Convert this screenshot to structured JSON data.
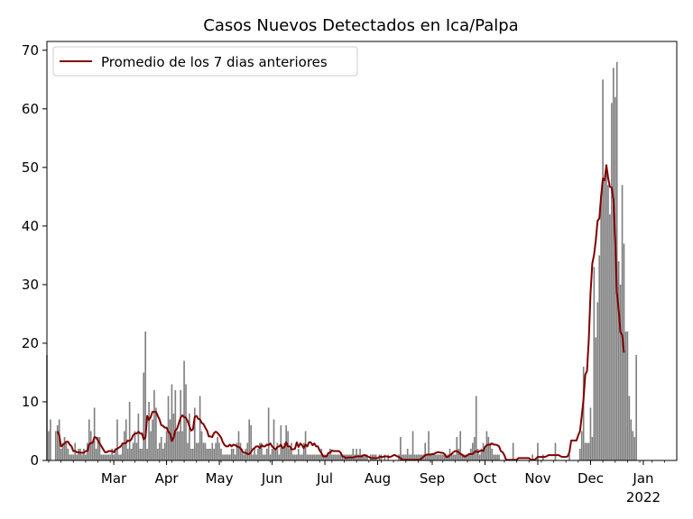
{
  "chart_data": {
    "type": "bar",
    "title": "Casos Nuevos Detectados en Ica/Palpa",
    "xlabel": "",
    "ylabel": "",
    "ylim": [
      0,
      71.5
    ],
    "yticks": [
      0,
      10,
      20,
      30,
      40,
      50,
      60,
      70
    ],
    "xlim": [
      0,
      358
    ],
    "xticks": [
      {
        "day": 38,
        "label": "Mar"
      },
      {
        "day": 68,
        "label": "Apr"
      },
      {
        "day": 98,
        "label": "May"
      },
      {
        "day": 128,
        "label": "Jun"
      },
      {
        "day": 158,
        "label": "Jul"
      },
      {
        "day": 188,
        "label": "Aug"
      },
      {
        "day": 219,
        "label": "Sep"
      },
      {
        "day": 249,
        "label": "Oct"
      },
      {
        "day": 279,
        "label": "Nov"
      },
      {
        "day": 309,
        "label": "Dec"
      },
      {
        "day": 339,
        "label": "Jan",
        "sublabel": "2022"
      }
    ],
    "minor_ticks": true,
    "grid": false,
    "legend_position": "top-left",
    "colors": {
      "bars": "#808080",
      "line": "#800000"
    },
    "series": [
      {
        "kind": "bar",
        "values": [
          18,
          5,
          7,
          0,
          0,
          5,
          6,
          7,
          2,
          3,
          4,
          3,
          2,
          1,
          1,
          1,
          3,
          1,
          2,
          2,
          1,
          2,
          1,
          3,
          7,
          5,
          3,
          9,
          2,
          4,
          4,
          1,
          1,
          1,
          1,
          1,
          1,
          2,
          1,
          2,
          7,
          1,
          1,
          3,
          5,
          7,
          2,
          10,
          2,
          3,
          5,
          3,
          8,
          2,
          2,
          15,
          22,
          2,
          10,
          5,
          7,
          12,
          9,
          2,
          3,
          4,
          2,
          3,
          5,
          11,
          7,
          13,
          8,
          12,
          5,
          5,
          12,
          5,
          17,
          13,
          3,
          8,
          2,
          2,
          9,
          3,
          3,
          11,
          5,
          3,
          3,
          2,
          2,
          2,
          3,
          2,
          3,
          4,
          3,
          2,
          1,
          1,
          1,
          1,
          1,
          2,
          2,
          1,
          3,
          5,
          3,
          2,
          1,
          2,
          3,
          7,
          6,
          1,
          2,
          1,
          2,
          3,
          3,
          1,
          1,
          2,
          9,
          1,
          2,
          7,
          2,
          3,
          1,
          6,
          2,
          3,
          6,
          5,
          2,
          3,
          1,
          1,
          1,
          2,
          1,
          1,
          3,
          5,
          1,
          1,
          1,
          1,
          1,
          1,
          1,
          1,
          2,
          1,
          1,
          1,
          1,
          2,
          1,
          1,
          1,
          1,
          1,
          1,
          1,
          1,
          1,
          1,
          1,
          1,
          2,
          1,
          2,
          1,
          2,
          1,
          1,
          1,
          1,
          0,
          1,
          1,
          1,
          1,
          0,
          1,
          1,
          0,
          1,
          0,
          1,
          0,
          0,
          0,
          0,
          0,
          1,
          4,
          1,
          1,
          1,
          2,
          1,
          1,
          5,
          1,
          1,
          1,
          1,
          1,
          1,
          3,
          1,
          5,
          1,
          1,
          1,
          1,
          1,
          1,
          1,
          1,
          1,
          1,
          1,
          2,
          1,
          1,
          1,
          4,
          2,
          5,
          1,
          1,
          1,
          1,
          1,
          2,
          3,
          4,
          11,
          2,
          1,
          2,
          3,
          2,
          5,
          4,
          3,
          2,
          1,
          1,
          1,
          1,
          0,
          0,
          0,
          0,
          0,
          0,
          0,
          3,
          0,
          0,
          0,
          0,
          0,
          0,
          0,
          0,
          0,
          0,
          1,
          0,
          0,
          3,
          0,
          0,
          1,
          0,
          0,
          0,
          0,
          0,
          0,
          3,
          0,
          0,
          0,
          0,
          0,
          0,
          0,
          1,
          0,
          0,
          0,
          0,
          0,
          2,
          5,
          16,
          3,
          3,
          3,
          9,
          4,
          33,
          21,
          27,
          35,
          45,
          65,
          48,
          50,
          47,
          42,
          61,
          67,
          62,
          68,
          34,
          30,
          47,
          37,
          22,
          22,
          11,
          7,
          5,
          4,
          18
        ]
      },
      {
        "kind": "line",
        "name": "Promedio de los 7 dias anteriores",
        "start_day": 6,
        "values": [
          5,
          4.3,
          2.4,
          2.6,
          2.9,
          3.2,
          3.2,
          2.7,
          2.4,
          1.6,
          1.6,
          1.4,
          1.4,
          1.3,
          1.3,
          1.3,
          1.6,
          1.6,
          2.7,
          3.0,
          3.0,
          4.0,
          3.9,
          3.4,
          2.9,
          2.4,
          1.9,
          1.4,
          1.4,
          1.6,
          1.6,
          1.6,
          1.4,
          1.9,
          2.0,
          2.2,
          2.4,
          2.9,
          2.9,
          3.0,
          3.4,
          3.3,
          3.6,
          4.3,
          4.6,
          4.6,
          4.9,
          4.6,
          4.6,
          3.6,
          3.9,
          7.6,
          6.9,
          7.4,
          8.3,
          8.3,
          8.3,
          7.6,
          7.0,
          6.0,
          5.9,
          5.6,
          5.6,
          4.9,
          4.6,
          3.3,
          3.9,
          5.1,
          5.4,
          6.4,
          7.3,
          7.7,
          7.4,
          7.3,
          6.7,
          5.8,
          5.1,
          5.3,
          7.4,
          7.6,
          7.1,
          7.0,
          6.4,
          6.2,
          5.6,
          5.1,
          4.1,
          4.1,
          4.0,
          4.7,
          4.9,
          4.7,
          4.3,
          3.9,
          3.1,
          2.6,
          2.4,
          2.4,
          2.7,
          2.4,
          2.7,
          2.6,
          2.4,
          2.3,
          2.1,
          1.6,
          1.3,
          1.3,
          1.1,
          1.1,
          1.4,
          1.9,
          2.1,
          2.4,
          2.4,
          2.1,
          2.6,
          2.4,
          2.4,
          2.7,
          2.6,
          2.9,
          2.4,
          2.1,
          1.9,
          2.3,
          2.4,
          2.7,
          2.1,
          2.3,
          3.1,
          2.4,
          2.4,
          1.9,
          1.9,
          2.0,
          3.1,
          2.3,
          2.9,
          2.6,
          2.1,
          2.7,
          2.4,
          3.1,
          3.1,
          2.6,
          2.9,
          2.4,
          2.4,
          1.7,
          1.3,
          0.7,
          0.7,
          0.7,
          1.3,
          1.3,
          1.7,
          1.6,
          1.6,
          1.6,
          1.6,
          1.3,
          0.7,
          0.6,
          0.4,
          0.5,
          0.5,
          0.5,
          0.5,
          0.6,
          0.7,
          0.7,
          0.7,
          0.7,
          0.9,
          0.9,
          0.7,
          0.6,
          0.4,
          0.4,
          0.4,
          0.4,
          0.4,
          0.6,
          0.6,
          0.6,
          0.7,
          0.7,
          0.6,
          0.6,
          0.7,
          0.9,
          0.9,
          0.7,
          0.6,
          0.4,
          0.1,
          0.1,
          0.1,
          0.1,
          0.1,
          0.1,
          0.1,
          0.1,
          0.1,
          0.1,
          0.1,
          0.4,
          0.6,
          0.9,
          1.0,
          1.0,
          1.0,
          1.1,
          1.1,
          1.3,
          1.4,
          1.4,
          1.3,
          1.3,
          1.1,
          0.6,
          0.6,
          0.9,
          1.1,
          1.4,
          1.6,
          1.6,
          1.4,
          1.1,
          1.0,
          0.7,
          0.7,
          0.9,
          1.1,
          1.1,
          1.1,
          1.4,
          1.6,
          1.4,
          1.6,
          1.7,
          1.6,
          2.3,
          2.6,
          2.7,
          2.7,
          2.9,
          2.7,
          2.7,
          2.6,
          2.4,
          1.6,
          1.4,
          0.9,
          0.1,
          0.1,
          0.1,
          0.1,
          0.1,
          0.1,
          0.1,
          0.4,
          0.4,
          0.4,
          0.4,
          0.4,
          0.4,
          0.4,
          0.1,
          0.1,
          0.1,
          0.3,
          0.6,
          0.6,
          0.6,
          0.6,
          0.6,
          0.7,
          0.9,
          0.9,
          0.9,
          0.9,
          0.9,
          0.9,
          0.9,
          0.7,
          0.6,
          0.6,
          0.6,
          0.7,
          1.4,
          3.4,
          3.4,
          3.4,
          3.4,
          4.3,
          5.0,
          7.6,
          10.4,
          14.6,
          15.3,
          20.6,
          28.6,
          33.6,
          35.1,
          37.6,
          40.9,
          41.3,
          45.1,
          48.1,
          47.8,
          50.4,
          48.2,
          46.7,
          46.6,
          44.6,
          37.9,
          28.6,
          25.7,
          21.9,
          21.4,
          18.4
        ]
      }
    ]
  }
}
